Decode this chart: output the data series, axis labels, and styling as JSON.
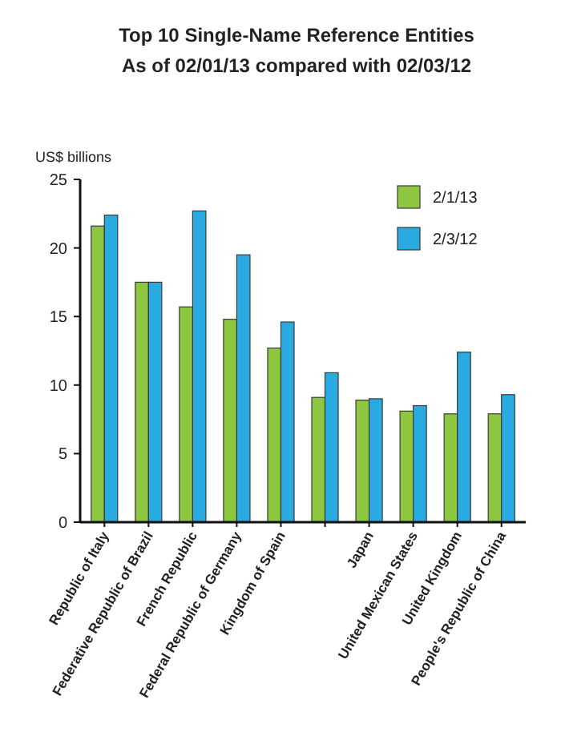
{
  "chart_data": {
    "type": "bar",
    "title": "Top 10 Single-Name Reference Entities",
    "subtitle": "As of 02/01/13 compared with 02/03/12",
    "ylabel": "US$ billions",
    "categories": [
      "Republic of Italy",
      "Federative Republic of Brazil",
      "French Republic",
      "Federal Republic of Germany",
      "Kingdom of Spain",
      null,
      "Japan",
      "United Mexican States",
      "United Kingdom",
      "People's Republic of China"
    ],
    "series": [
      {
        "name": "2/1/13",
        "color": "#8dc63f",
        "values": [
          21.6,
          17.5,
          15.7,
          14.8,
          12.7,
          9.1,
          8.9,
          8.1,
          7.9,
          7.9
        ]
      },
      {
        "name": "2/3/12",
        "color": "#29abe2",
        "values": [
          22.4,
          17.5,
          22.7,
          19.5,
          14.6,
          10.9,
          9.0,
          8.5,
          12.4,
          9.3
        ]
      }
    ],
    "ylim": [
      0,
      25
    ],
    "yticks": [
      0,
      5,
      10,
      15,
      20,
      25
    ],
    "grid": false,
    "legend": "top right"
  }
}
